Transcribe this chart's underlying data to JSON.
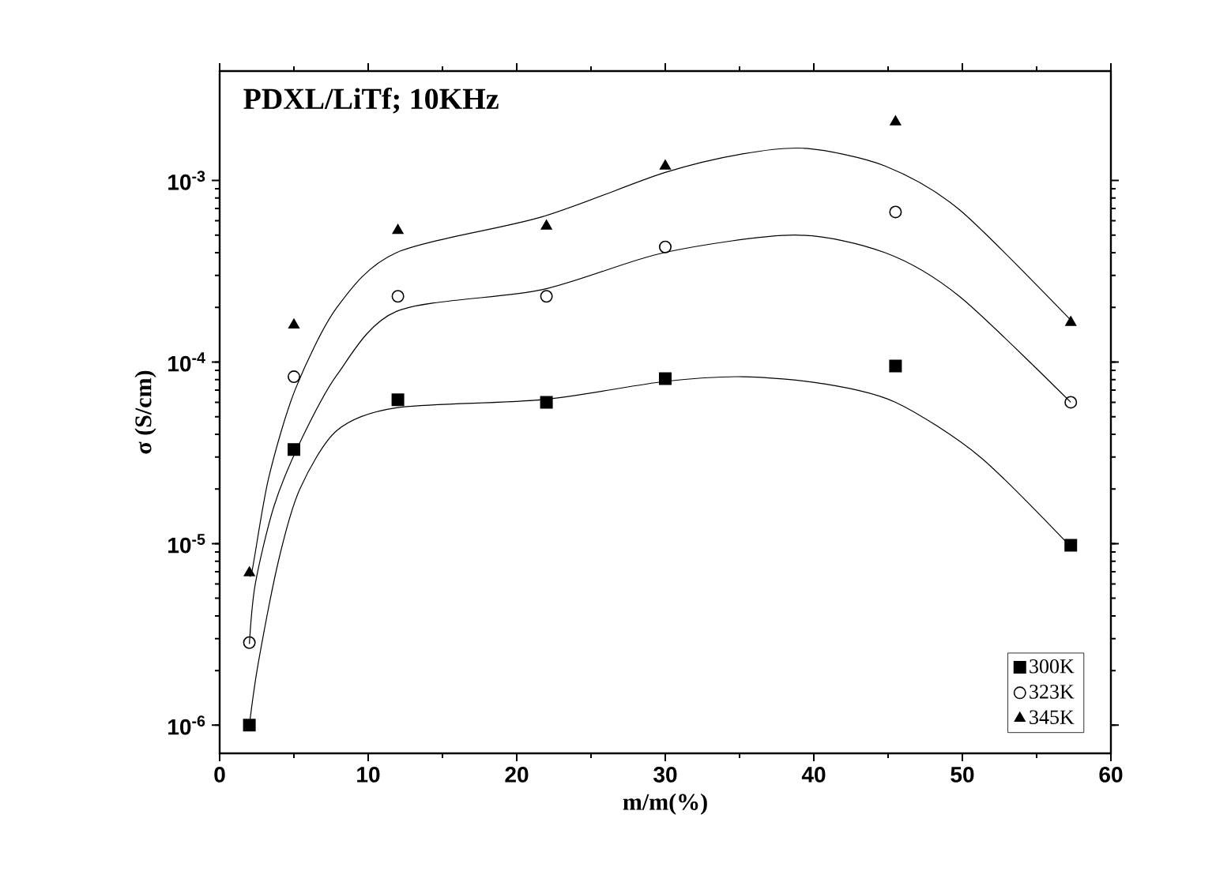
{
  "chart_data": {
    "type": "scatter",
    "title": "PDXL/LiTf; 10KHz",
    "xlabel": "m/m(%)",
    "ylabel": "σ (S/cm)",
    "log": "y",
    "legend": "bottom right",
    "xlim": [
      0,
      60
    ],
    "xticks": [
      0,
      10,
      20,
      30,
      40,
      50,
      60
    ],
    "ylim": [
      7e-07,
      0.004
    ],
    "yticks": [
      {
        "value": 1e-06,
        "label": "10$^{-6}$"
      },
      {
        "value": 1e-05,
        "label": "10$^{-5}$"
      },
      {
        "value": 0.0001,
        "label": "10$^{-4}$"
      },
      {
        "value": 0.001,
        "label": "10$^{-3}$"
      }
    ],
    "series": [
      {
        "name": "300K",
        "marker": "square",
        "color": "#000000",
        "x": [
          2,
          5,
          12,
          22,
          30,
          45.5,
          57.3
        ],
        "values": [
          1e-06,
          3.3e-05,
          6.2e-05,
          6e-05,
          8.1e-05,
          9.5e-05,
          9.8e-06
        ]
      },
      {
        "name": "323K",
        "marker": "circle",
        "color": "#000000",
        "x": [
          2,
          5,
          12,
          22,
          30,
          45.5,
          57.3
        ],
        "values": [
          2.85e-06,
          8.3e-05,
          0.00023,
          0.00023,
          0.00043,
          0.00067,
          6e-05
        ]
      },
      {
        "name": "345K",
        "marker": "triangle",
        "color": "#000000",
        "x": [
          2,
          5,
          12,
          22,
          30,
          45.5,
          57.3
        ],
        "values": [
          6.9e-06,
          0.00016,
          0.00053,
          0.00056,
          0.0012,
          0.0021,
          0.000165
        ]
      },
      {
        "type": "line",
        "line_style": "solid",
        "color": "#000000",
        "x": [
          2,
          2.6,
          4.0,
          5.4,
          7.9,
          11.9,
          21.7,
          29.9,
          35.2,
          40.6,
          45.5,
          51.2,
          57.3
        ],
        "values": [
          1e-06,
          2.2e-06,
          8.3e-06,
          2e-05,
          4.2e-05,
          5.6e-05,
          6.2e-05,
          7.8e-05,
          8.3e-05,
          7.6e-05,
          6e-05,
          3e-05,
          9.6e-06
        ]
      },
      {
        "type": "line",
        "line_style": "solid",
        "color": "#000000",
        "x": [
          2,
          2.4,
          3.65,
          5.4,
          7.9,
          11.9,
          21.7,
          29.9,
          38.7,
          44.8,
          49.8,
          57.3
        ],
        "values": [
          2.8e-06,
          6e-06,
          1.6e-05,
          3.6e-05,
          8.5e-05,
          0.00019,
          0.00025,
          0.0004,
          0.0005,
          0.0004,
          0.00023,
          6e-05
        ]
      },
      {
        "type": "line",
        "line_style": "solid",
        "color": "#000000",
        "x": [
          2,
          2.2,
          3.3,
          5.1,
          7.9,
          11.9,
          21.7,
          29.9,
          35.2,
          39.5,
          44.8,
          49.8,
          57.3
        ],
        "values": [
          6.9e-06,
          7.2e-06,
          2.3e-05,
          7.1e-05,
          0.0002,
          0.0004,
          0.00063,
          0.0011,
          0.0014,
          0.0015,
          0.0012,
          0.00069,
          0.00017
        ]
      }
    ]
  }
}
